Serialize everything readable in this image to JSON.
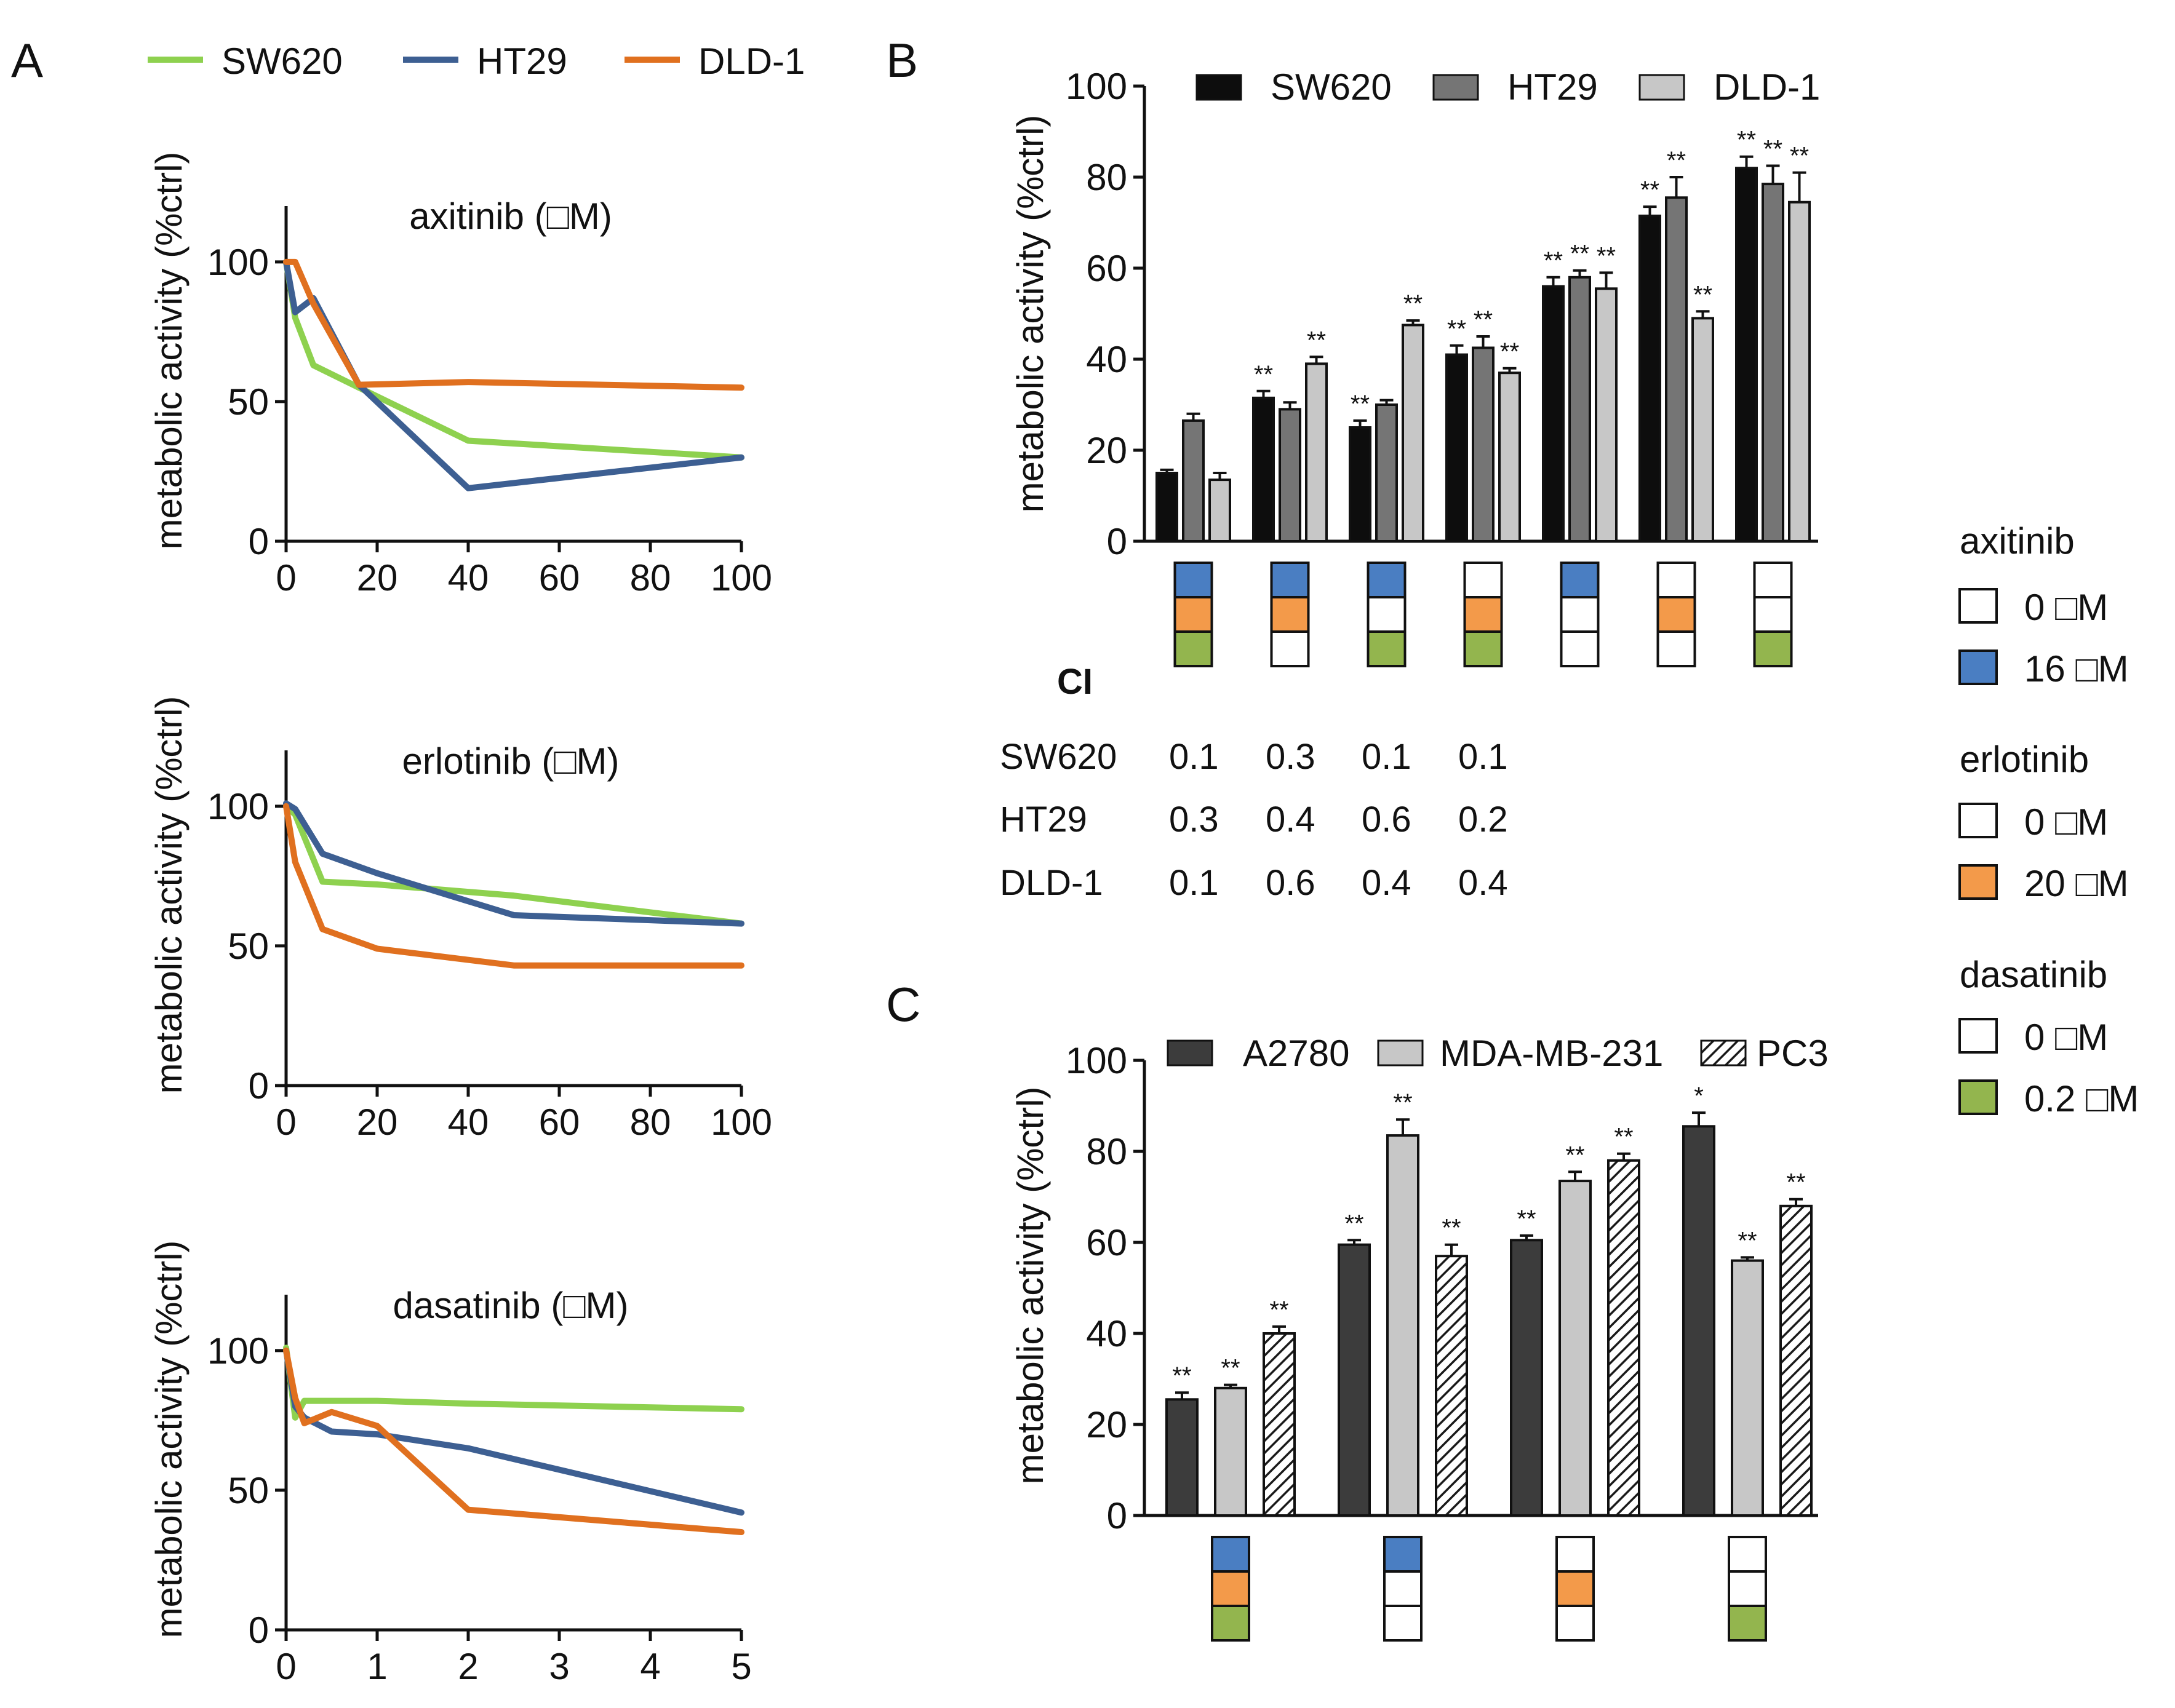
{
  "panel_labels": {
    "a": "A",
    "b": "B",
    "c": "C"
  },
  "colors": {
    "sw620_line": "#8ed14f",
    "ht29_line": "#3d5f92",
    "dld1_line": "#e0701f",
    "axitinib_box": "#4a7ec2",
    "erlotinib_box": "#f39a4a",
    "dasatinib_box": "#93b54e",
    "bar_black": "#0d0d0d",
    "bar_dark_gray": "#757575",
    "bar_light_gray": "#c7c7c7",
    "bar_a2780": "#3c3c3c",
    "bar_mda": "#c7c7c7"
  },
  "panel_a": {
    "legend": [
      {
        "name": "SW620",
        "color": "#8ed14f"
      },
      {
        "name": "HT29",
        "color": "#3d5f92"
      },
      {
        "name": "DLD-1",
        "color": "#e0701f"
      }
    ]
  },
  "panel_b": {
    "legend": [
      "SW620",
      "HT29",
      "DLD-1"
    ],
    "ci_title": "CI",
    "ci_rows": [
      {
        "cell_line": "SW620",
        "values": [
          "0.1",
          "0.3",
          "0.1",
          "0.1"
        ]
      },
      {
        "cell_line": "HT29",
        "values": [
          "0.3",
          "0.4",
          "0.6",
          "0.2"
        ]
      },
      {
        "cell_line": "DLD-1",
        "values": [
          "0.1",
          "0.6",
          "0.4",
          "0.4"
        ]
      }
    ]
  },
  "panel_c": {
    "legend": [
      "A2780",
      "MDA-MB-231",
      "PC3"
    ]
  },
  "side_legend": [
    {
      "drug": "axitinib",
      "items": [
        {
          "label": "0 □M",
          "filled": false
        },
        {
          "label": "16 □M",
          "filled": true,
          "color": "#4a7ec2"
        }
      ]
    },
    {
      "drug": "erlotinib",
      "items": [
        {
          "label": "0 □M",
          "filled": false
        },
        {
          "label": "20 □M",
          "filled": true,
          "color": "#f39a4a"
        }
      ]
    },
    {
      "drug": "dasatinib",
      "items": [
        {
          "label": "0 □M",
          "filled": false
        },
        {
          "label": "0.2 □M",
          "filled": true,
          "color": "#93b54e"
        }
      ]
    }
  ],
  "chart_data": [
    {
      "id": "A1",
      "type": "line",
      "title": "axitinib (□M)",
      "xlabel": "",
      "ylabel": "metabolic activity (%ctrl)",
      "xlim": [
        0,
        100
      ],
      "ylim": [
        0,
        120
      ],
      "xticks": [
        0,
        20,
        40,
        60,
        80,
        100
      ],
      "yticks": [
        0,
        50,
        100
      ],
      "series": [
        {
          "name": "SW620",
          "color": "#8ed14f",
          "x": [
            0,
            2,
            6,
            16,
            40,
            100
          ],
          "y": [
            100,
            80,
            63,
            55,
            36,
            30
          ]
        },
        {
          "name": "HT29",
          "color": "#3d5f92",
          "x": [
            0,
            2,
            6,
            16,
            40,
            100
          ],
          "y": [
            100,
            82,
            87,
            56,
            19,
            30
          ]
        },
        {
          "name": "DLD-1",
          "color": "#e0701f",
          "x": [
            0,
            2,
            6,
            16,
            40,
            100
          ],
          "y": [
            100,
            100,
            85,
            56,
            57,
            55
          ]
        }
      ]
    },
    {
      "id": "A2",
      "type": "line",
      "title": "erlotinib (□M)",
      "xlabel": "",
      "ylabel": "metabolic activity (%ctrl)",
      "xlim": [
        0,
        100
      ],
      "ylim": [
        0,
        120
      ],
      "xticks": [
        0,
        20,
        40,
        60,
        80,
        100
      ],
      "yticks": [
        0,
        50,
        100
      ],
      "series": [
        {
          "name": "SW620",
          "color": "#8ed14f",
          "x": [
            0,
            2,
            8,
            20,
            50,
            100
          ],
          "y": [
            100,
            97,
            73,
            72,
            68,
            58
          ]
        },
        {
          "name": "HT29",
          "color": "#3d5f92",
          "x": [
            0,
            2,
            8,
            20,
            50,
            100
          ],
          "y": [
            101,
            99,
            83,
            76,
            61,
            58
          ]
        },
        {
          "name": "DLD-1",
          "color": "#e0701f",
          "x": [
            0,
            2,
            8,
            20,
            50,
            100
          ],
          "y": [
            100,
            80,
            56,
            49,
            43,
            43
          ]
        }
      ]
    },
    {
      "id": "A3",
      "type": "line",
      "title": "dasatinib (□M)",
      "xlabel": "",
      "ylabel": "metabolic activity (%ctrl)",
      "xlim": [
        0,
        5
      ],
      "ylim": [
        0,
        120
      ],
      "xticks": [
        0,
        1,
        2,
        3,
        4,
        5
      ],
      "yticks": [
        0,
        50,
        100
      ],
      "series": [
        {
          "name": "SW620",
          "color": "#8ed14f",
          "x": [
            0,
            0.1,
            0.2,
            0.5,
            1,
            2,
            5
          ],
          "y": [
            101,
            76,
            82,
            82,
            82,
            81,
            79
          ]
        },
        {
          "name": "HT29",
          "color": "#3d5f92",
          "x": [
            0,
            0.1,
            0.2,
            0.5,
            1,
            2,
            5
          ],
          "y": [
            100,
            80,
            76,
            71,
            70,
            65,
            42
          ]
        },
        {
          "name": "DLD-1",
          "color": "#e0701f",
          "x": [
            0,
            0.1,
            0.2,
            0.5,
            1,
            2,
            5
          ],
          "y": [
            100,
            83,
            74,
            78,
            73,
            43,
            35
          ]
        }
      ]
    },
    {
      "id": "B",
      "type": "bar",
      "title": "",
      "xlabel": "",
      "ylabel": "metabolic activity (%ctrl)",
      "ylim": [
        0,
        100
      ],
      "yticks": [
        0,
        20,
        40,
        60,
        80,
        100
      ],
      "categories": [
        "axi+erl+das",
        "axi+erl",
        "axi+das",
        "erl+das",
        "axi",
        "erl",
        "das"
      ],
      "series": [
        {
          "name": "SW620",
          "fill": "#0d0d0d",
          "values": [
            15,
            31.5,
            25,
            41,
            56,
            71.5,
            82
          ],
          "errors": [
            0.7,
            1.5,
            1.5,
            2,
            2,
            2,
            2.5
          ],
          "stars": [
            "",
            "**",
            "**",
            "**",
            "**",
            "**",
            "**"
          ]
        },
        {
          "name": "HT29",
          "fill": "#757575",
          "values": [
            26.5,
            29,
            30,
            42.5,
            58,
            75.5,
            78.5
          ],
          "errors": [
            1.5,
            1.5,
            1,
            2.5,
            1.5,
            4.5,
            4
          ],
          "stars": [
            "",
            "",
            "",
            "**",
            "**",
            "**",
            "**"
          ]
        },
        {
          "name": "DLD-1",
          "fill": "#c7c7c7",
          "values": [
            13.5,
            39,
            47.5,
            37,
            55.5,
            49,
            74.5
          ],
          "errors": [
            1.5,
            1.5,
            1,
            1,
            3.5,
            1.5,
            6.5
          ],
          "stars": [
            "",
            "**",
            "**",
            "**",
            "**",
            "**",
            "**"
          ]
        }
      ],
      "treatments": [
        {
          "axitinib": true,
          "erlotinib": true,
          "dasatinib": true
        },
        {
          "axitinib": true,
          "erlotinib": true,
          "dasatinib": false
        },
        {
          "axitinib": true,
          "erlotinib": false,
          "dasatinib": true
        },
        {
          "axitinib": false,
          "erlotinib": true,
          "dasatinib": true
        },
        {
          "axitinib": true,
          "erlotinib": false,
          "dasatinib": false
        },
        {
          "axitinib": false,
          "erlotinib": true,
          "dasatinib": false
        },
        {
          "axitinib": false,
          "erlotinib": false,
          "dasatinib": true
        }
      ]
    },
    {
      "id": "C",
      "type": "bar",
      "title": "",
      "xlabel": "",
      "ylabel": "metabolic activity  (%ctrl)",
      "ylim": [
        0,
        100
      ],
      "yticks": [
        0,
        20,
        40,
        60,
        80,
        100
      ],
      "categories": [
        "axi+erl+das",
        "axi",
        "erl",
        "das"
      ],
      "series": [
        {
          "name": "A2780",
          "fill": "#3c3c3c",
          "values": [
            25.5,
            59.5,
            60.5,
            85.5
          ],
          "errors": [
            1.5,
            1,
            1,
            3
          ],
          "stars": [
            "**",
            "**",
            "**",
            "*"
          ]
        },
        {
          "name": "MDA-MB-231",
          "fill": "#c7c7c7",
          "values": [
            28,
            83.5,
            73.5,
            56
          ],
          "errors": [
            0.7,
            3.5,
            2,
            0.7
          ],
          "stars": [
            "**",
            "**",
            "**",
            "**"
          ]
        },
        {
          "name": "PC3",
          "fill": "hatch",
          "values": [
            40,
            57,
            78,
            68
          ],
          "errors": [
            1.5,
            2.5,
            1.5,
            1.5
          ],
          "stars": [
            "**",
            "**",
            "**",
            "**"
          ]
        }
      ],
      "treatments": [
        {
          "axitinib": true,
          "erlotinib": true,
          "dasatinib": true
        },
        {
          "axitinib": true,
          "erlotinib": false,
          "dasatinib": false
        },
        {
          "axitinib": false,
          "erlotinib": true,
          "dasatinib": false
        },
        {
          "axitinib": false,
          "erlotinib": false,
          "dasatinib": true
        }
      ]
    }
  ]
}
